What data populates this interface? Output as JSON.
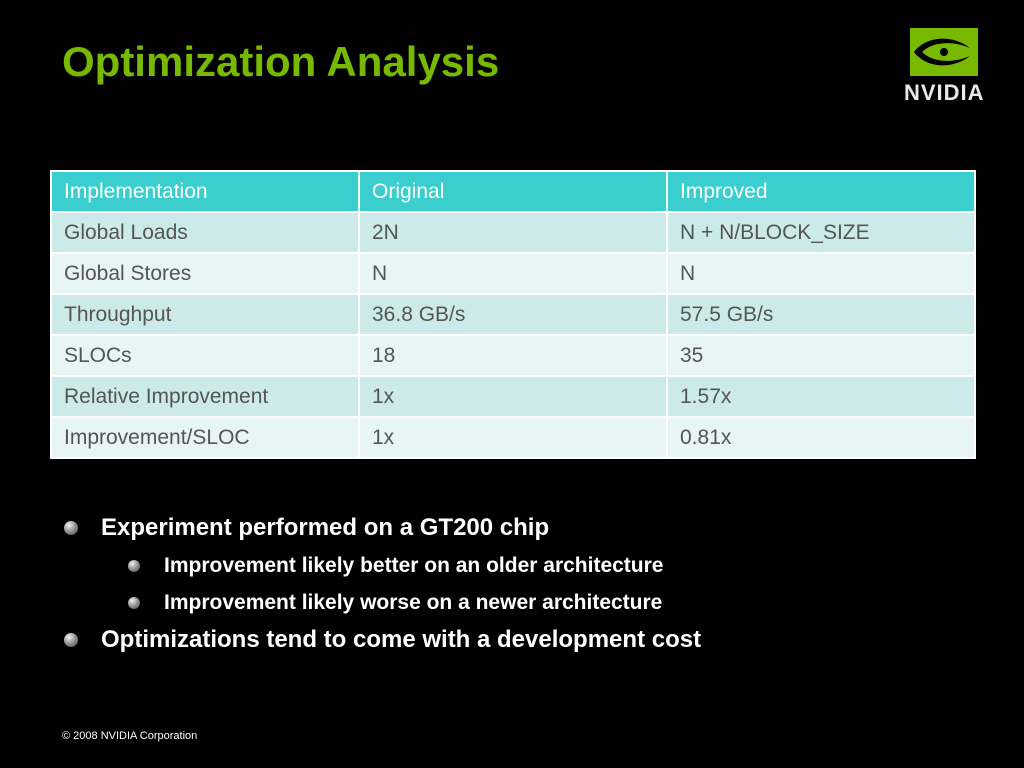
{
  "slide": {
    "title": "Optimization Analysis",
    "logo_text": "NVIDIA",
    "footer": "© 2008 NVIDIA Corporation",
    "accent_color": "#76b900",
    "header_color": "#3acece"
  },
  "table": {
    "headers": [
      "Implementation",
      "Original",
      "Improved"
    ],
    "rows": [
      [
        "Global Loads",
        "2N",
        "N + N/BLOCK_SIZE"
      ],
      [
        "Global Stores",
        "N",
        "N"
      ],
      [
        "Throughput",
        "36.8 GB/s",
        "57.5 GB/s"
      ],
      [
        "SLOCs",
        "18",
        "35"
      ],
      [
        "Relative Improvement",
        "1x",
        "1.57x"
      ],
      [
        "Improvement/SLOC",
        "1x",
        "0.81x"
      ]
    ]
  },
  "bullets": {
    "b1": "Experiment performed on a GT200 chip",
    "b1_sub": [
      "Improvement likely better on an older architecture",
      "Improvement likely worse on a newer architecture"
    ],
    "b2": "Optimizations tend to come with a development cost"
  }
}
